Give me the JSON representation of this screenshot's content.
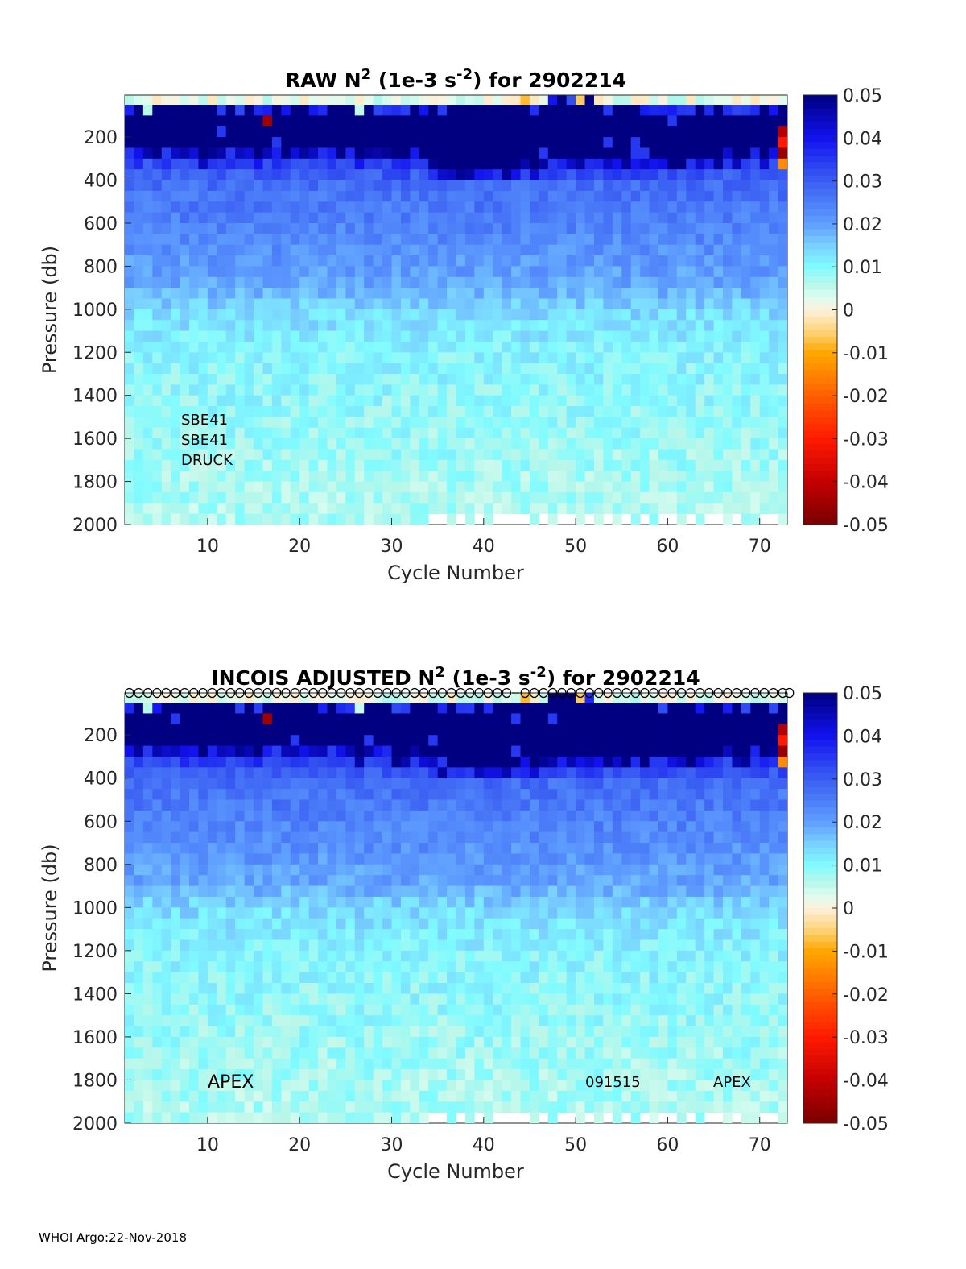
{
  "footer": "WHOI Argo:22-Nov-2018",
  "colormap": {
    "limits": [
      -0.05,
      0.05
    ],
    "ticks": [
      "0.05",
      "0.04",
      "0.03",
      "0.02",
      "0.01",
      "0",
      "-0.01",
      "-0.02",
      "-0.03",
      "-0.04",
      "-0.05"
    ],
    "stops": [
      [
        -0.05,
        "#7a0000"
      ],
      [
        -0.04,
        "#c40000"
      ],
      [
        -0.03,
        "#ff1a00"
      ],
      [
        -0.02,
        "#ff6000"
      ],
      [
        -0.01,
        "#ffa800"
      ],
      [
        -0.005,
        "#fdd47a"
      ],
      [
        0,
        "#fdf1dc"
      ],
      [
        0.003,
        "#dcfdf0"
      ],
      [
        0.006,
        "#b8f7ea"
      ],
      [
        0.01,
        "#80fbff"
      ],
      [
        0.015,
        "#7ad0ff"
      ],
      [
        0.02,
        "#5f9eff"
      ],
      [
        0.03,
        "#3a5ef2"
      ],
      [
        0.04,
        "#1212ee"
      ],
      [
        0.05,
        "#000080"
      ]
    ]
  },
  "chart_data": [
    {
      "type": "heatmap",
      "title_parts": [
        "RAW N",
        "2",
        " (1e-3 s",
        "-2",
        ") for 2902214"
      ],
      "xlabel": "Cycle Number",
      "ylabel": "Pressure (db)",
      "xlim": [
        1,
        73
      ],
      "ylim": [
        5,
        2000
      ],
      "xticks": [
        "10",
        "20",
        "30",
        "40",
        "50",
        "60",
        "70"
      ],
      "yticks": [
        "200",
        "400",
        "600",
        "800",
        "1000",
        "1200",
        "1400",
        "1600",
        "1800",
        "2000"
      ],
      "annotations": [
        "SBE41",
        "SBE41",
        "DRUCK"
      ],
      "markers": false,
      "seed": 1
    },
    {
      "type": "heatmap",
      "title_parts": [
        "INCOIS  ADJUSTED N",
        "2",
        " (1e-3 s",
        "-2",
        ") for 2902214"
      ],
      "xlabel": "Cycle Number",
      "ylabel": "Pressure (db)",
      "xlim": [
        1,
        73
      ],
      "ylim": [
        5,
        2000
      ],
      "xticks": [
        "10",
        "20",
        "30",
        "40",
        "50",
        "60",
        "70"
      ],
      "yticks": [
        "200",
        "400",
        "600",
        "800",
        "1000",
        "1200",
        "1400",
        "1600",
        "1800",
        "2000"
      ],
      "annotations": [
        "APEX",
        "091515",
        "APEX"
      ],
      "markers": true,
      "marker_missing_cycles": [
        43
      ],
      "seed": 2
    }
  ],
  "grid_model": {
    "cycles": 72,
    "bin_db": 50,
    "mixed_layer_db": [
      70,
      60,
      80,
      60,
      70,
      55,
      70,
      60,
      60,
      70,
      60,
      70,
      60,
      55,
      70,
      60,
      60,
      65,
      70,
      60,
      70,
      60,
      70,
      75,
      70,
      80,
      75,
      70,
      65,
      60,
      70,
      60,
      55,
      60,
      55,
      50,
      55,
      50,
      60,
      55,
      40,
      50,
      40,
      50,
      60,
      30,
      20,
      20,
      15,
      25,
      25,
      40,
      40,
      45,
      50,
      45,
      55,
      55,
      60,
      55,
      60,
      65,
      55,
      60,
      70,
      65,
      60,
      70,
      65,
      55,
      70,
      30
    ],
    "dark_base_db": [
      280,
      300,
      270,
      290,
      300,
      280,
      300,
      290,
      310,
      300,
      290,
      300,
      280,
      300,
      310,
      290,
      300,
      280,
      300,
      290,
      300,
      290,
      300,
      290,
      300,
      310,
      300,
      290,
      300,
      310,
      320,
      300,
      320,
      340,
      360,
      380,
      380,
      370,
      380,
      360,
      370,
      380,
      360,
      350,
      360,
      350,
      340,
      340,
      330,
      340,
      350,
      340,
      330,
      330,
      320,
      330,
      320,
      340,
      330,
      320,
      310,
      320,
      330,
      310,
      320,
      300,
      310,
      320,
      300,
      310,
      300,
      340
    ],
    "profile": [
      [
        0,
        0.036
      ],
      [
        100,
        0.028
      ],
      [
        600,
        0.019
      ],
      [
        700,
        0.014
      ],
      [
        900,
        0.0105
      ],
      [
        1200,
        0.0088
      ],
      [
        1500,
        0.0072
      ],
      [
        2000,
        0.0055
      ]
    ],
    "anomalies": [
      [
        16,
        125,
        -0.045
      ],
      [
        72,
        175,
        -0.042
      ],
      [
        72,
        225,
        -0.03
      ],
      [
        72,
        275,
        -0.046
      ],
      [
        72,
        325,
        -0.014
      ],
      [
        44,
        25,
        -0.008
      ],
      [
        50,
        25,
        -0.006
      ]
    ],
    "missing_bottom_cycles": [
      34,
      35,
      37,
      39,
      41,
      42,
      43,
      44,
      46,
      48,
      49,
      51,
      53,
      55,
      57,
      59,
      60,
      62,
      64,
      65,
      67,
      70,
      71
    ]
  }
}
